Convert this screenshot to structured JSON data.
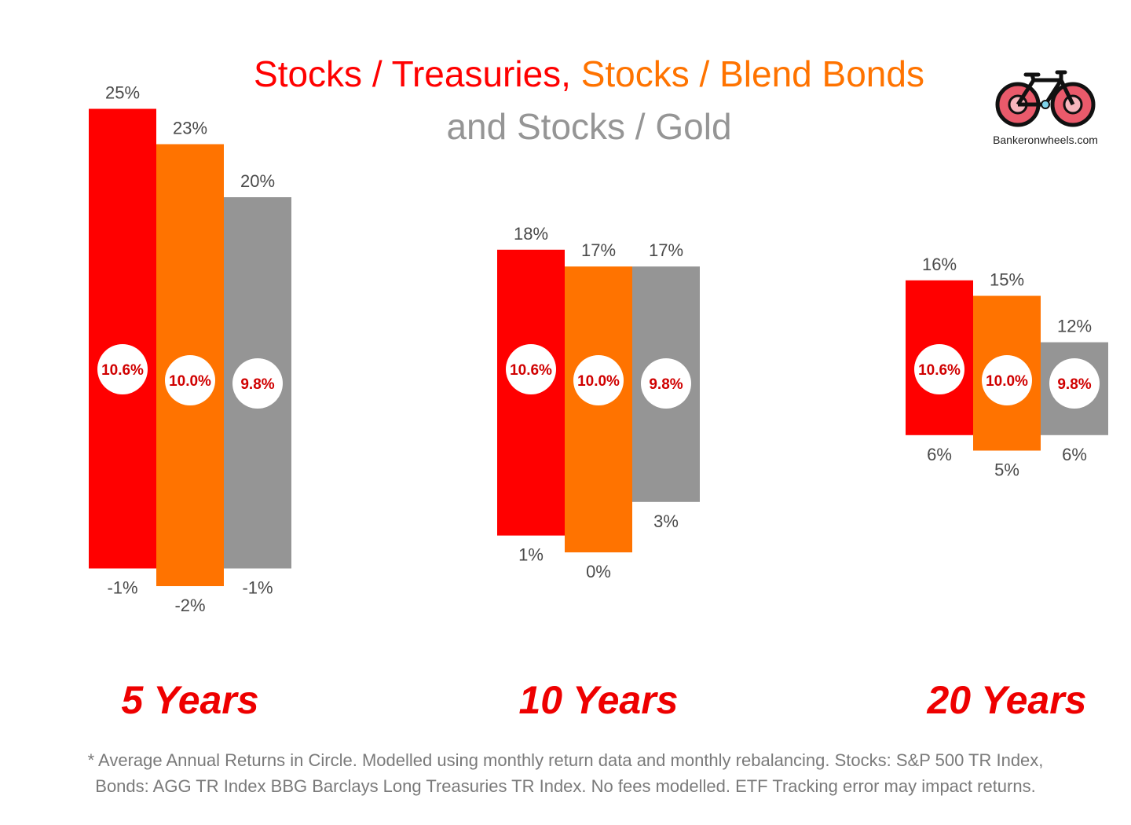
{
  "title": {
    "part1": "Stocks / Treasuries,",
    "part2": "Stocks / Blend Bonds",
    "part3": "and Stocks / Gold"
  },
  "logo": {
    "icon": "bicycle-icon",
    "text": "Bankeronwheels.com"
  },
  "footnote": {
    "line1": "* Average Annual Returns in Circle. Modelled using monthly return data and monthly rebalancing. Stocks: S&P 500 TR Index,",
    "line2": "Bonds: AGG TR Index BBG Barclays Long Treasuries TR Index. No fees modelled.  ETF Tracking error may impact returns."
  },
  "colors": {
    "stocks_treasuries": "#ff0000",
    "stocks_blend_bonds": "#ff7300",
    "stocks_gold": "#959595",
    "period_label": "#ee0000",
    "circle_text": "#d00000"
  },
  "chart_data": {
    "type": "bar",
    "subtype": "floating-range",
    "categories": [
      "5 Years",
      "10 Years",
      "20 Years"
    ],
    "series": [
      {
        "key": "stocks_treasuries",
        "high": [
          25,
          18,
          16
        ],
        "low": [
          -1,
          1,
          6
        ],
        "average": [
          10.6,
          10.6,
          10.6
        ],
        "high_labels": [
          "25%",
          "18%",
          "16%"
        ],
        "low_labels": [
          "-1%",
          "1%",
          "6%"
        ],
        "average_labels": [
          "10.6%",
          "10.6%",
          "10.6%"
        ]
      },
      {
        "key": "stocks_blend_bonds",
        "high": [
          23,
          17,
          15
        ],
        "low": [
          -2,
          0,
          5
        ],
        "average": [
          10.0,
          10.0,
          10.0
        ],
        "high_labels": [
          "23%",
          "17%",
          "15%"
        ],
        "low_labels": [
          "-2%",
          "0%",
          "5%"
        ],
        "average_labels": [
          "10.0%",
          "10.0%",
          "10.0%"
        ]
      },
      {
        "key": "stocks_gold",
        "high": [
          20,
          17,
          12
        ],
        "low": [
          -1,
          3,
          6
        ],
        "average": [
          9.8,
          9.8,
          9.8
        ],
        "high_labels": [
          "20%",
          "17%",
          "12%"
        ],
        "low_labels": [
          "-1%",
          "3%",
          "6%"
        ],
        "average_labels": [
          "9.8%",
          "9.8%",
          "9.8%"
        ]
      }
    ],
    "grid": false,
    "legend": "title"
  }
}
